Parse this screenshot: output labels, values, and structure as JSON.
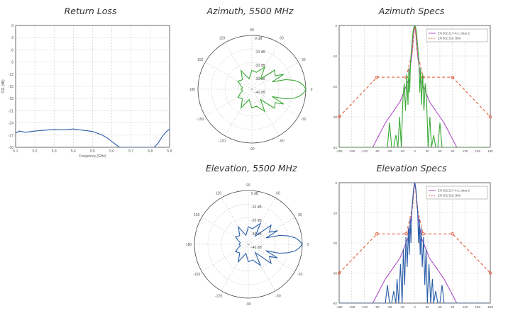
{
  "titles": {
    "return_loss": "Return Loss",
    "azimuth": "Azimuth, 5500 MHz",
    "az_specs": "Azimuth Specs",
    "elevation": "Elevation, 5500 MHz",
    "el_specs": "Elevation Specs"
  },
  "colors": {
    "blue": "#2a5ea8",
    "green": "#3aaa35",
    "magenta": "#b04cc8",
    "red_dash": "#e05a3a",
    "grid": "#c8c8c8",
    "axis": "#444444"
  },
  "chart_data": [
    {
      "id": "return_loss",
      "type": "line",
      "title": "Return Loss",
      "xlabel": "Frequency (GHz)",
      "ylabel": "S11 (dB)",
      "xlim": [
        5.1,
        5.9
      ],
      "ylim": [
        -30,
        0
      ],
      "xticks": [
        "5.1",
        "5.2",
        "5.3",
        "5.4",
        "5.5",
        "5.6",
        "5.7",
        "5.8",
        "5.9"
      ],
      "yticks": [
        "0",
        "-3",
        "-6",
        "-9",
        "-12",
        "-15",
        "-18",
        "-21",
        "-24",
        "-27",
        "-30"
      ],
      "grid": true,
      "x": [
        5.1,
        5.12,
        5.15,
        5.2,
        5.25,
        5.3,
        5.35,
        5.4,
        5.45,
        5.5,
        5.55,
        5.58,
        5.6,
        5.62,
        5.64,
        5.66,
        5.68,
        5.7,
        5.72,
        5.74,
        5.76,
        5.78,
        5.8,
        5.82,
        5.84,
        5.86,
        5.88,
        5.9
      ],
      "y": [
        -26.5,
        -26.0,
        -26.3,
        -26.0,
        -25.8,
        -25.6,
        -25.7,
        -25.5,
        -25.8,
        -26.1,
        -27.0,
        -27.8,
        -28.6,
        -29.3,
        -30.0,
        -30.0,
        -30.0,
        -30.0,
        -30.0,
        -30.0,
        -30.0,
        -30.0,
        -30.0,
        -30.0,
        -29.0,
        -27.5,
        -26.3,
        -25.5
      ],
      "series_color": "#2a5ea8"
    },
    {
      "id": "azimuth_polar",
      "type": "polar",
      "title": "Azimuth, 5500 MHz",
      "angle_labels": [
        "0",
        "30",
        "60",
        "90",
        "120",
        "150",
        "180",
        "-150",
        "-120",
        "-90",
        "-60",
        "-30"
      ],
      "radial_labels": [
        "0 dB",
        "-10 dB",
        "-20 dB",
        "-30 dB",
        "-40 dB"
      ],
      "rlim": [
        -40,
        0
      ],
      "angles_deg": [
        0,
        4,
        8,
        12,
        16,
        20,
        25,
        30,
        40,
        50,
        60,
        75,
        90,
        105,
        120,
        135,
        150,
        160,
        170,
        180,
        -170,
        -160,
        -150,
        -135,
        -120,
        -105,
        -90,
        -75,
        -60,
        -50,
        -40,
        -30,
        -25,
        -20,
        -16,
        -12,
        -8,
        -4
      ],
      "gain_db": [
        0,
        -1.5,
        -4,
        -8,
        -14,
        -24,
        -14,
        -20,
        -18,
        -30,
        -21,
        -27,
        -26,
        -32,
        -24,
        -30,
        -28,
        -31,
        -33,
        -32,
        -33,
        -31,
        -28,
        -30,
        -24,
        -32,
        -26,
        -27,
        -21,
        -30,
        -18,
        -20,
        -14,
        -24,
        -14,
        -8,
        -4,
        -1.5
      ],
      "series_color": "#3aaa35"
    },
    {
      "id": "azimuth_specs",
      "type": "line",
      "title": "Azimuth Specs",
      "xlim": [
        -180,
        180
      ],
      "ylim": [
        -40,
        0
      ],
      "xticks": [
        "-180",
        "-150",
        "-120",
        "-90",
        "-60",
        "-30",
        "0",
        "30",
        "60",
        "90",
        "120",
        "150",
        "180"
      ],
      "yticks": [
        "0",
        "-10",
        "-20",
        "-30",
        "-40"
      ],
      "grid": true,
      "legend": [
        "EN 302 217-4-2, class 2",
        "EN 302 326, B06"
      ],
      "legend_position": "top-right",
      "series": [
        {
          "name": "EN 302 217-4-2, class 2",
          "style": "solid",
          "color": "#b04cc8",
          "x": [
            -100,
            -70,
            -35,
            -15,
            -7,
            -3,
            0,
            3,
            7,
            15,
            35,
            70,
            100
          ],
          "y": [
            -40,
            -32,
            -25,
            -18,
            -10,
            -3,
            0,
            -3,
            -10,
            -18,
            -25,
            -32,
            -40
          ]
        },
        {
          "name": "EN 302 326, B06",
          "style": "dashed",
          "color": "#e05a3a",
          "x": [
            -180,
            -90,
            -20,
            -5,
            -2,
            0,
            2,
            5,
            20,
            90,
            180
          ],
          "y": [
            -30,
            -17,
            -17,
            -8,
            -2,
            0,
            -2,
            -8,
            -17,
            -17,
            -30
          ]
        },
        {
          "name": "",
          "style": "solid",
          "color": "#3aaa35",
          "x": [
            -180,
            -90,
            -75,
            -65,
            -60,
            -55,
            -50,
            -45,
            -40,
            -36,
            -32,
            -28,
            -25,
            -22,
            -19,
            -16,
            -14,
            -12,
            -10,
            -8,
            -6,
            -4,
            -2,
            0,
            2,
            4,
            6,
            8,
            10,
            12,
            14,
            16,
            19,
            22,
            25,
            28,
            32,
            36,
            40,
            45,
            50,
            55,
            60,
            65,
            75,
            90,
            180
          ],
          "y": [
            -40,
            -40,
            -40,
            -40,
            -32,
            -40,
            -40,
            -36,
            -40,
            -30,
            -40,
            -24,
            -19,
            -28,
            -16,
            -26,
            -14,
            -22,
            -12,
            -8,
            -5,
            -2,
            -0.5,
            0,
            -0.5,
            -2,
            -5,
            -8,
            -12,
            -22,
            -14,
            -26,
            -16,
            -28,
            -19,
            -24,
            -40,
            -30,
            -40,
            -36,
            -40,
            -40,
            -32,
            -40,
            -40,
            -40,
            -40
          ]
        }
      ]
    },
    {
      "id": "elevation_polar",
      "type": "polar",
      "title": "Elevation, 5500 MHz",
      "angle_labels": [
        "0",
        "30",
        "60",
        "90",
        "120",
        "150",
        "180",
        "-150",
        "-120",
        "-90",
        "-60",
        "-30"
      ],
      "radial_labels": [
        "0 dB",
        "-10 dB",
        "-20 dB",
        "-30 dB",
        "-40 dB"
      ],
      "rlim": [
        -40,
        0
      ],
      "angles_deg": [
        0,
        4,
        8,
        12,
        16,
        20,
        25,
        30,
        40,
        50,
        60,
        75,
        90,
        105,
        120,
        135,
        150,
        160,
        170,
        180,
        -170,
        -160,
        -150,
        -135,
        -120,
        -105,
        -90,
        -75,
        -60,
        -50,
        -40,
        -30,
        -25,
        -20,
        -16,
        -12,
        -8,
        -4
      ],
      "gain_db": [
        0,
        -2,
        -5,
        -10,
        -16,
        -26,
        -16,
        -22,
        -18,
        -32,
        -22,
        -28,
        -27,
        -33,
        -25,
        -31,
        -29,
        -32,
        -34,
        -33,
        -34,
        -32,
        -29,
        -31,
        -25,
        -33,
        -27,
        -28,
        -22,
        -32,
        -18,
        -22,
        -16,
        -26,
        -16,
        -10,
        -5,
        -2
      ],
      "series_color": "#2a5ea8"
    },
    {
      "id": "elevation_specs",
      "type": "line",
      "title": "Elevation Specs",
      "xlim": [
        -180,
        180
      ],
      "ylim": [
        -40,
        0
      ],
      "xticks": [
        "-180",
        "-150",
        "-120",
        "-90",
        "-60",
        "-30",
        "0",
        "30",
        "60",
        "90",
        "120",
        "150",
        "180"
      ],
      "yticks": [
        "0",
        "-10",
        "-20",
        "-30",
        "-40"
      ],
      "grid": true,
      "legend": [
        "EN 302 217-4-2, class 2",
        "EN 302 326, B06"
      ],
      "legend_position": "top-right",
      "series": [
        {
          "name": "EN 302 217-4-2, class 2",
          "style": "solid",
          "color": "#b04cc8",
          "x": [
            -100,
            -70,
            -35,
            -15,
            -7,
            -3,
            0,
            3,
            7,
            15,
            35,
            70,
            100
          ],
          "y": [
            -40,
            -32,
            -25,
            -18,
            -10,
            -3,
            0,
            -3,
            -10,
            -18,
            -25,
            -32,
            -40
          ]
        },
        {
          "name": "EN 302 326, B06",
          "style": "dashed",
          "color": "#e05a3a",
          "x": [
            -180,
            -90,
            -20,
            -5,
            -2,
            0,
            2,
            5,
            20,
            90,
            180
          ],
          "y": [
            -30,
            -17,
            -17,
            -8,
            -2,
            0,
            -2,
            -8,
            -17,
            -17,
            -30
          ]
        },
        {
          "name": "",
          "style": "solid",
          "color": "#2a5ea8",
          "x": [
            -180,
            -90,
            -70,
            -65,
            -60,
            -55,
            -50,
            -45,
            -42,
            -38,
            -34,
            -30,
            -27,
            -24,
            -21,
            -18,
            -15,
            -13,
            -11,
            -9,
            -7,
            -5,
            -3,
            -1,
            0,
            1,
            3,
            5,
            7,
            9,
            11,
            13,
            15,
            18,
            21,
            24,
            27,
            30,
            34,
            38,
            42,
            45,
            50,
            55,
            60,
            65,
            70,
            90,
            180
          ],
          "y": [
            -40,
            -40,
            -40,
            -34,
            -40,
            -40,
            -36,
            -40,
            -32,
            -40,
            -27,
            -40,
            -22,
            -34,
            -18,
            -28,
            -15,
            -24,
            -12,
            -20,
            -9,
            -6,
            -2.5,
            -0.5,
            0,
            -0.5,
            -2.5,
            -6,
            -9,
            -20,
            -12,
            -24,
            -15,
            -28,
            -18,
            -34,
            -22,
            -40,
            -27,
            -40,
            -32,
            -40,
            -36,
            -40,
            -40,
            -34,
            -40,
            -40,
            -40
          ]
        }
      ]
    }
  ]
}
